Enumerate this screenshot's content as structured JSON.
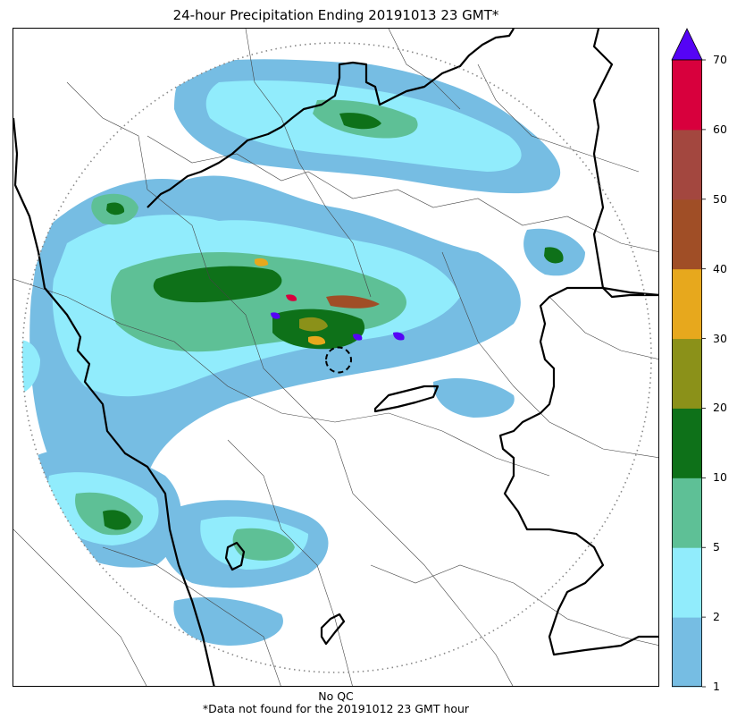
{
  "title": "24-hour Precipitation Ending 20191013 23 GMT*",
  "footer": {
    "qc": "No QC",
    "note": "*Data not found for the 20191012 23 GMT hour"
  },
  "colorbar": {
    "levels": [
      "1",
      "2",
      "5",
      "10",
      "20",
      "30",
      "40",
      "50",
      "60",
      "70"
    ],
    "colors": [
      "#76bde3",
      "#91ecfc",
      "#5ec096",
      "#0e7119",
      "#8b9119",
      "#e7a81d",
      "#a04e26",
      "#a3473f",
      "#d8003d"
    ],
    "extend_color": "#5504f5"
  },
  "map": {
    "radar_range_ring": "dotted",
    "country_border_color": "#000000",
    "region_border_color": "#444444"
  }
}
